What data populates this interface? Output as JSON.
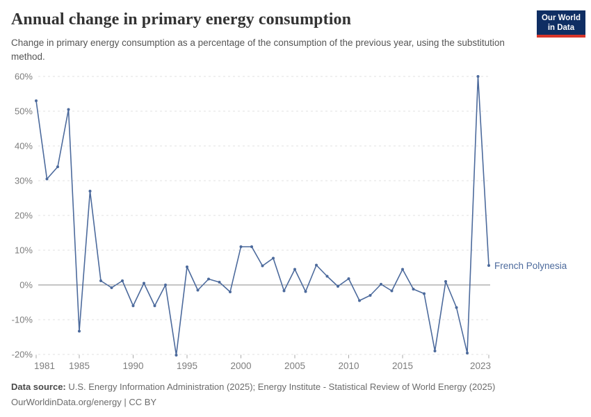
{
  "header": {
    "title": "Annual change in primary energy consumption",
    "subtitle": "Change in primary energy consumption as a percentage of the consumption of the previous year, using the substitution method.",
    "logo": {
      "line1": "Our World",
      "line2": "in Data",
      "bg_color": "#0f2e63",
      "accent_color": "#d8352a"
    }
  },
  "chart_data": {
    "type": "line",
    "title": "Annual change in primary energy consumption",
    "xlabel": "",
    "ylabel": "",
    "ylim": [
      -20,
      60
    ],
    "yticks": [
      60,
      50,
      40,
      30,
      20,
      10,
      0,
      -10,
      -20
    ],
    "ytick_suffix": "%",
    "xticks": [
      1981,
      1985,
      1990,
      1995,
      2000,
      2005,
      2010,
      2015,
      2023
    ],
    "grid": "horizontal dashed gridlines, solid zero line",
    "legend": "end-of-line entity label",
    "x": [
      1981,
      1982,
      1983,
      1984,
      1985,
      1986,
      1987,
      1988,
      1989,
      1990,
      1991,
      1992,
      1993,
      1994,
      1995,
      1996,
      1997,
      1998,
      1999,
      2000,
      2001,
      2002,
      2003,
      2004,
      2005,
      2006,
      2007,
      2008,
      2009,
      2010,
      2011,
      2012,
      2013,
      2014,
      2015,
      2016,
      2017,
      2018,
      2019,
      2020,
      2021,
      2022,
      2023
    ],
    "series": [
      {
        "name": "French Polynesia",
        "color": "#4C6A9C",
        "values": [
          53,
          30.5,
          34,
          50.5,
          -13.3,
          27,
          1.2,
          -0.8,
          1.2,
          -6,
          0.5,
          -6,
          0,
          -20.2,
          5.2,
          -1.5,
          1.7,
          0.8,
          -2,
          11,
          11,
          5.5,
          7.7,
          -1.7,
          4.5,
          -1.9,
          5.7,
          2.5,
          -0.4,
          1.8,
          -4.5,
          -3,
          0.2,
          -1.7,
          4.5,
          -1.2,
          -2.5,
          -19,
          1,
          -6.5,
          -19.6,
          60,
          5.6
        ]
      }
    ],
    "colors": {
      "gridline": "#e2e2e2",
      "zero_line": "#8b8b8b",
      "tick_label": "#7d7d7d",
      "tick_mark": "#a8a8a8"
    }
  },
  "footer": {
    "source_label": "Data source:",
    "source_text": " U.S. Energy Information Administration (2025); Energy Institute - Statistical Review of World Energy (2025)",
    "link_line": "OurWorldinData.org/energy | CC BY"
  }
}
